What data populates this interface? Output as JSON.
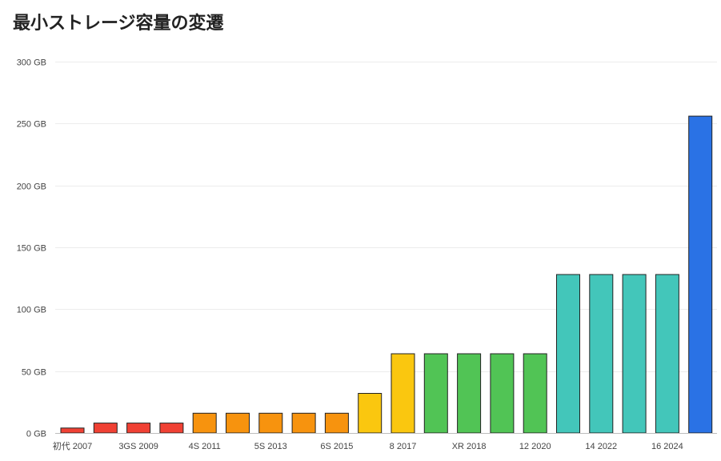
{
  "chart_data": {
    "type": "bar",
    "title": "最小ストレージ容量の変遷",
    "xlabel": "",
    "ylabel": "",
    "ylim": [
      0,
      300
    ],
    "y_ticks": [
      0,
      50,
      100,
      150,
      200,
      250,
      300
    ],
    "y_tick_labels": [
      "0 GB",
      "50 GB",
      "100 GB",
      "150 GB",
      "200 GB",
      "250 GB",
      "300 GB"
    ],
    "grid": true,
    "legend": "none",
    "bars": [
      {
        "value": 4,
        "color": "#f04134",
        "label": "初代 2007"
      },
      {
        "value": 8,
        "color": "#f04134",
        "label": ""
      },
      {
        "value": 8,
        "color": "#f04134",
        "label": "3GS 2009"
      },
      {
        "value": 8,
        "color": "#f04134",
        "label": ""
      },
      {
        "value": 16,
        "color": "#f7930e",
        "label": "4S 2011"
      },
      {
        "value": 16,
        "color": "#f7930e",
        "label": ""
      },
      {
        "value": 16,
        "color": "#f7930e",
        "label": "5S 2013"
      },
      {
        "value": 16,
        "color": "#f7930e",
        "label": ""
      },
      {
        "value": 16,
        "color": "#f7930e",
        "label": "6S 2015"
      },
      {
        "value": 32,
        "color": "#fac70f",
        "label": ""
      },
      {
        "value": 64,
        "color": "#fac70f",
        "label": "8 2017"
      },
      {
        "value": 64,
        "color": "#51c455",
        "label": ""
      },
      {
        "value": 64,
        "color": "#51c455",
        "label": "XR 2018"
      },
      {
        "value": 64,
        "color": "#51c455",
        "label": ""
      },
      {
        "value": 64,
        "color": "#51c455",
        "label": "12 2020"
      },
      {
        "value": 128,
        "color": "#43c6ba",
        "label": ""
      },
      {
        "value": 128,
        "color": "#43c6ba",
        "label": "14 2022"
      },
      {
        "value": 128,
        "color": "#43c6ba",
        "label": ""
      },
      {
        "value": 128,
        "color": "#43c6ba",
        "label": "16 2024"
      },
      {
        "value": 256,
        "color": "#2a72e5",
        "label": ""
      }
    ],
    "colors": {
      "grid": "#ececec",
      "axis": "#bdbdbd",
      "bar_stroke": "#222222"
    }
  }
}
